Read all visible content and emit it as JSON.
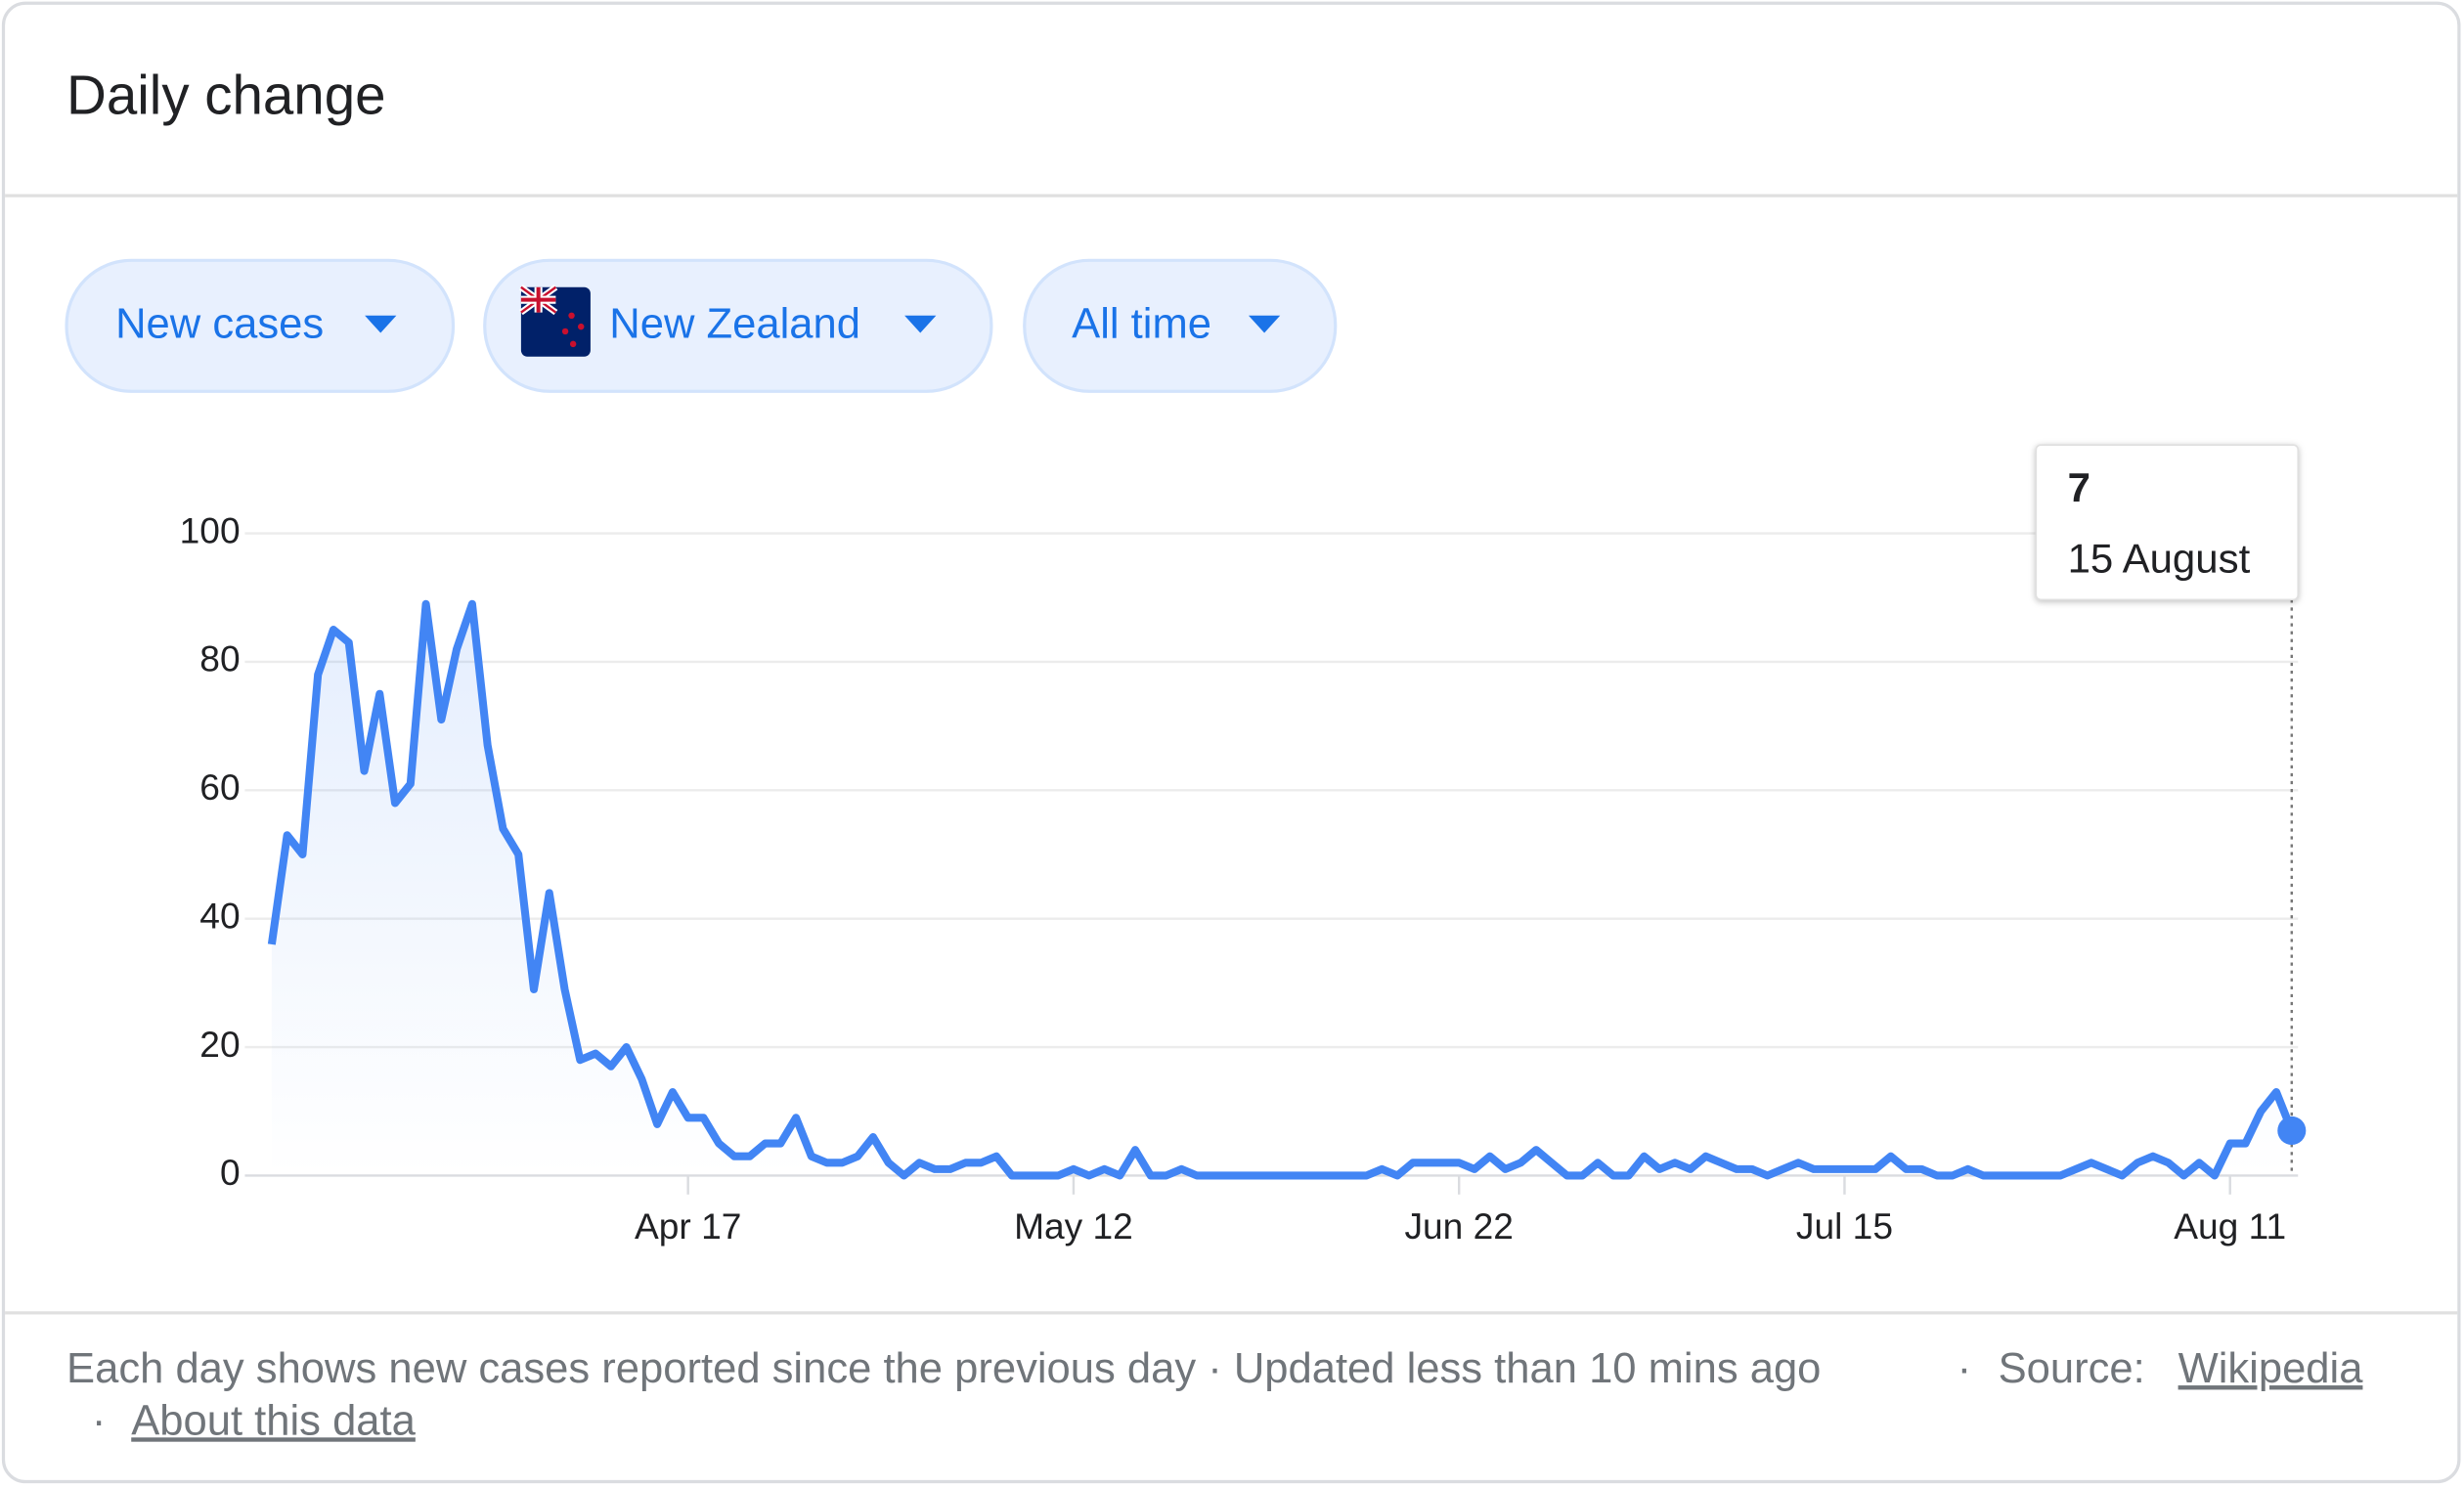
{
  "header": {
    "title": "Daily change"
  },
  "filters": [
    "New cases",
    "New Zealand",
    "All time"
  ],
  "chart_data": {
    "type": "line",
    "color": "#4285f4",
    "grid": true,
    "ylim": [
      0,
      100
    ],
    "yticks": [
      0,
      20,
      40,
      60,
      80,
      100
    ],
    "categories": [
      null,
      null,
      null,
      null,
      null,
      null,
      null,
      null,
      null,
      null,
      null,
      null,
      null,
      null,
      null,
      null,
      null,
      null,
      null,
      null,
      null,
      null,
      null,
      null,
      null,
      null,
      null,
      "Apr 17",
      null,
      null,
      null,
      null,
      null,
      null,
      null,
      null,
      null,
      null,
      null,
      null,
      null,
      null,
      null,
      null,
      null,
      null,
      null,
      null,
      null,
      null,
      null,
      null,
      "May 12",
      null,
      null,
      null,
      null,
      null,
      null,
      null,
      null,
      null,
      null,
      null,
      null,
      null,
      null,
      null,
      null,
      null,
      null,
      null,
      null,
      null,
      null,
      null,
      null,
      "Jun 22",
      null,
      null,
      null,
      null,
      null,
      null,
      null,
      null,
      null,
      null,
      null,
      null,
      null,
      null,
      null,
      null,
      null,
      null,
      null,
      null,
      null,
      null,
      null,
      null,
      "Jul 15",
      null,
      null,
      null,
      null,
      null,
      null,
      null,
      null,
      null,
      null,
      null,
      null,
      null,
      null,
      null,
      null,
      null,
      null,
      null,
      null,
      null,
      null,
      null,
      null,
      "Aug 11",
      null,
      null,
      null,
      null
    ],
    "values": [
      36,
      53,
      50,
      78,
      85,
      83,
      63,
      75,
      58,
      61,
      89,
      71,
      82,
      89,
      67,
      54,
      50,
      29,
      44,
      29,
      18,
      19,
      17,
      20,
      15,
      8,
      13,
      9,
      9,
      5,
      3,
      3,
      5,
      5,
      9,
      3,
      2,
      2,
      3,
      6,
      2,
      0,
      2,
      1,
      1,
      2,
      2,
      3,
      0,
      0,
      0,
      0,
      1,
      0,
      1,
      0,
      4,
      0,
      0,
      1,
      0,
      0,
      0,
      0,
      0,
      0,
      0,
      0,
      0,
      0,
      0,
      0,
      1,
      0,
      2,
      2,
      2,
      2,
      1,
      3,
      1,
      2,
      4,
      2,
      0,
      0,
      2,
      0,
      0,
      3,
      1,
      2,
      1,
      3,
      2,
      1,
      1,
      0,
      1,
      2,
      1,
      1,
      1,
      1,
      1,
      3,
      1,
      1,
      0,
      0,
      1,
      0,
      0,
      0,
      0,
      0,
      0,
      1,
      2,
      1,
      0,
      2,
      3,
      2,
      0,
      2,
      0,
      5,
      5,
      10,
      13,
      7
    ],
    "tooltip": {
      "date": "15 August"
    }
  },
  "footer": {
    "note": "Each day shows new cases reported since the previous day · Updated less than 10 mins ago",
    "separator": "·",
    "source_label": "Source:",
    "source_link": "Wikipedia",
    "about_link": "About this data"
  }
}
